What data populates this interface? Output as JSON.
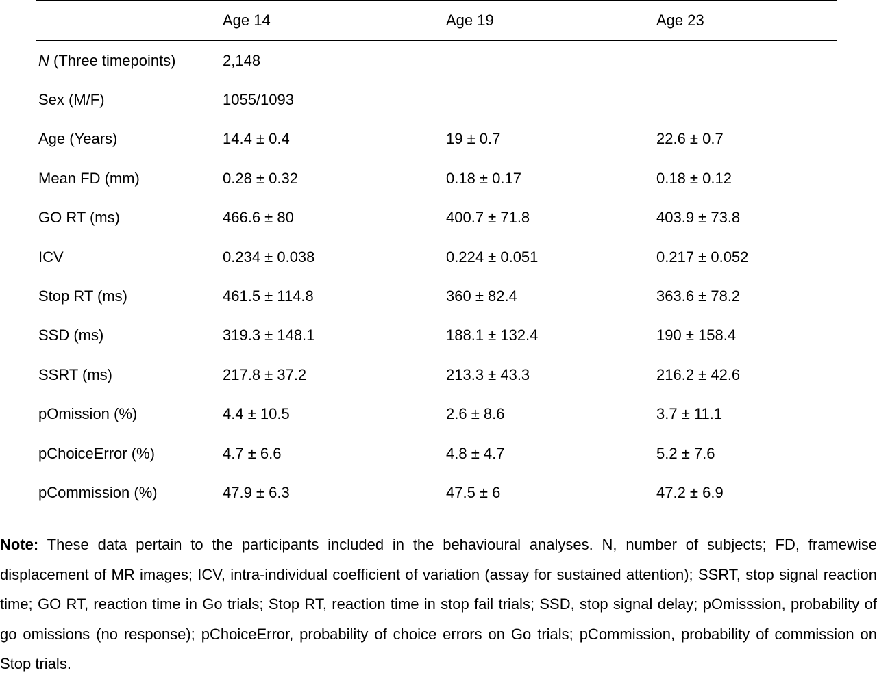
{
  "table": {
    "columns": [
      "",
      "Age 14",
      "Age 19",
      "Age 23"
    ],
    "rows": [
      {
        "label_prefix": "N",
        "label_rest": " (Three timepoints)",
        "cells": [
          "2,148",
          "",
          ""
        ]
      },
      {
        "label_prefix": "",
        "label_rest": "Sex (M/F)",
        "cells": [
          "1055/1093",
          "",
          ""
        ]
      },
      {
        "label_prefix": "",
        "label_rest": "Age (Years)",
        "cells": [
          "14.4 ± 0.4",
          "19 ± 0.7",
          "22.6 ± 0.7"
        ]
      },
      {
        "label_prefix": "",
        "label_rest": "Mean FD (mm)",
        "cells": [
          "0.28 ± 0.32",
          "0.18 ± 0.17",
          "0.18 ± 0.12"
        ]
      },
      {
        "label_prefix": "",
        "label_rest": "GO RT (ms)",
        "cells": [
          "466.6 ± 80",
          "400.7 ± 71.8",
          "403.9 ± 73.8"
        ]
      },
      {
        "label_prefix": "",
        "label_rest": "ICV",
        "cells": [
          "0.234 ± 0.038",
          "0.224 ± 0.051",
          "0.217 ± 0.052"
        ]
      },
      {
        "label_prefix": "",
        "label_rest": "Stop RT (ms)",
        "cells": [
          "461.5 ± 114.8",
          "360 ± 82.4",
          "363.6 ± 78.2"
        ]
      },
      {
        "label_prefix": "",
        "label_rest": "SSD (ms)",
        "cells": [
          "319.3 ± 148.1",
          "188.1 ± 132.4",
          "190 ± 158.4"
        ]
      },
      {
        "label_prefix": "",
        "label_rest": "SSRT (ms)",
        "cells": [
          "217.8 ± 37.2",
          "213.3 ± 43.3",
          "216.2 ± 42.6"
        ]
      },
      {
        "label_prefix": "",
        "label_rest": "pOmission (%)",
        "cells": [
          "4.4 ± 10.5",
          "2.6 ± 8.6",
          "3.7 ± 11.1"
        ]
      },
      {
        "label_prefix": "",
        "label_rest": "pChoiceError (%)",
        "cells": [
          "4.7 ± 6.6",
          "4.8 ± 4.7",
          "5.2 ± 7.6"
        ]
      },
      {
        "label_prefix": "",
        "label_rest": "pCommission (%)",
        "cells": [
          "47.9 ± 6.3",
          "47.5 ± 6",
          "47.2 ± 6.9"
        ]
      }
    ]
  },
  "note": {
    "label": "Note:",
    "text": " These data pertain to the participants included in the behavioural analyses. N, number of subjects; FD, framewise displacement of MR images; ICV, intra-individual coefficient of variation (assay for sustained attention); SSRT, stop signal reaction time; GO RT, reaction time in Go trials; Stop RT, reaction time in stop fail trials; SSD, stop signal delay; pOmisssion, probability of go omissions (no response); pChoiceError, probability of choice errors on Go trials; pCommission, probability of commission on Stop trials."
  }
}
